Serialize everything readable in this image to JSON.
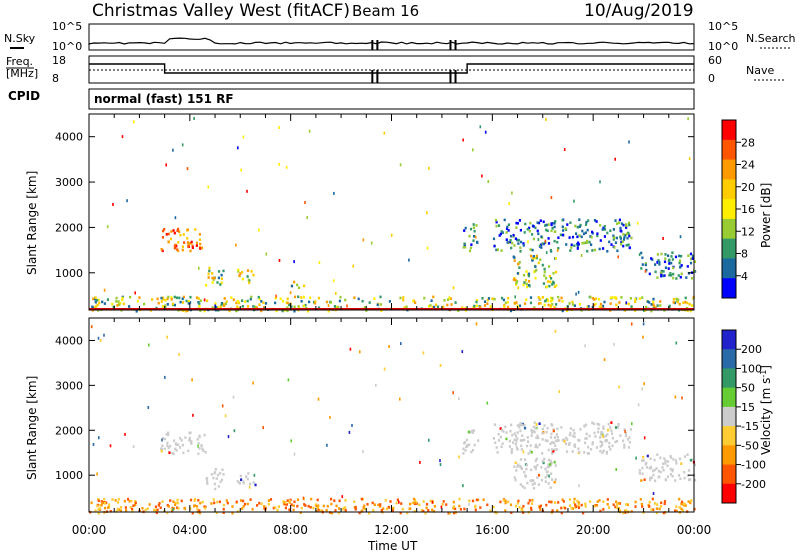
{
  "header": {
    "title": "Christmas Valley West (fitACF)",
    "beam": "Beam 16",
    "date": "10/Aug/2019"
  },
  "nsky_panel": {
    "left_label": "N.Sky",
    "right_label": "N.Search",
    "left_ticks": [
      "10^5",
      "10^0"
    ],
    "right_ticks": [
      "10^5",
      "10^0"
    ]
  },
  "freq_panel": {
    "left_label_1": "Freq.",
    "left_label_2": "[MHz]",
    "right_label": "Nave",
    "left_ticks": [
      "18",
      "8"
    ],
    "right_ticks": [
      "60",
      "0"
    ]
  },
  "cpid": {
    "label": "CPID",
    "value": "normal (fast) 151 RF"
  },
  "chart_data": [
    {
      "type": "heatmap",
      "name": "power-panel",
      "ylabel": "Slant Range [km]",
      "xlabel": "",
      "x_ticks": [
        "00:00",
        "04:00",
        "08:00",
        "12:00",
        "16:00",
        "20:00",
        "00:00"
      ],
      "xlim_hours": [
        0,
        24
      ],
      "y_ticks": [
        1000,
        2000,
        3000,
        4000
      ],
      "ylim": [
        180,
        4500
      ],
      "colorbar": {
        "label": "Power [dB]",
        "ticks": [
          "28",
          "24",
          "20",
          "16",
          "12",
          "8",
          "4"
        ],
        "colors": [
          "#ff0000",
          "#ff5500",
          "#ff9900",
          "#ffcc00",
          "#ffee00",
          "#99cc33",
          "#339966",
          "#1a6aa0",
          "#0000ff"
        ]
      },
      "features": [
        {
          "t0": 2.8,
          "t1": 4.6,
          "r0": 1500,
          "r1": 2000,
          "level": "high"
        },
        {
          "t0": 4.6,
          "t1": 5.3,
          "r0": 700,
          "r1": 1200,
          "level": "mid"
        },
        {
          "t0": 5.8,
          "t1": 6.6,
          "r0": 800,
          "r1": 1100,
          "level": "mid"
        },
        {
          "t0": 8.0,
          "t1": 8.5,
          "r0": 700,
          "r1": 900,
          "level": "mid"
        },
        {
          "t0": 14.8,
          "t1": 15.4,
          "r0": 1500,
          "r1": 2100,
          "level": "low"
        },
        {
          "t0": 16.0,
          "t1": 21.5,
          "r0": 1500,
          "r1": 2200,
          "level": "low"
        },
        {
          "t0": 16.8,
          "t1": 18.5,
          "r0": 700,
          "r1": 1400,
          "level": "mid"
        },
        {
          "t0": 21.8,
          "t1": 24.0,
          "r0": 900,
          "r1": 1500,
          "level": "low"
        },
        {
          "t0": 0.0,
          "t1": 24.0,
          "r0": 180,
          "r1": 500,
          "level": "mid"
        }
      ]
    },
    {
      "type": "heatmap",
      "name": "velocity-panel",
      "ylabel": "Slant Range [km]",
      "xlabel": "Time UT",
      "x_ticks": [
        "00:00",
        "04:00",
        "08:00",
        "12:00",
        "16:00",
        "20:00",
        "00:00"
      ],
      "xlim_hours": [
        0,
        24
      ],
      "y_ticks": [
        1000,
        2000,
        3000,
        4000
      ],
      "ylim": [
        180,
        4500
      ],
      "colorbar": {
        "label": "Velocity [m s^-1]",
        "ticks": [
          "200",
          "100",
          "50",
          "15",
          "-15",
          "-50",
          "-100",
          "-200"
        ],
        "colors": [
          "#2222cc",
          "#2a6aa8",
          "#339966",
          "#66cc33",
          "#cccccc",
          "#ffcc33",
          "#ff9900",
          "#ff5500",
          "#ff0000"
        ]
      },
      "features": [
        {
          "t0": 2.8,
          "t1": 4.6,
          "r0": 1500,
          "r1": 2000,
          "level": "ground"
        },
        {
          "t0": 4.6,
          "t1": 5.3,
          "r0": 700,
          "r1": 1200,
          "level": "ground"
        },
        {
          "t0": 5.8,
          "t1": 6.6,
          "r0": 800,
          "r1": 1100,
          "level": "ground"
        },
        {
          "t0": 14.8,
          "t1": 15.4,
          "r0": 1500,
          "r1": 2100,
          "level": "ground"
        },
        {
          "t0": 16.0,
          "t1": 21.5,
          "r0": 1500,
          "r1": 2200,
          "level": "ground"
        },
        {
          "t0": 16.8,
          "t1": 18.5,
          "r0": 700,
          "r1": 1400,
          "level": "ground"
        },
        {
          "t0": 21.8,
          "t1": 24.0,
          "r0": 900,
          "r1": 1500,
          "level": "ground"
        },
        {
          "t0": 0.0,
          "t1": 24.0,
          "r0": 180,
          "r1": 500,
          "level": "neg"
        }
      ]
    }
  ]
}
